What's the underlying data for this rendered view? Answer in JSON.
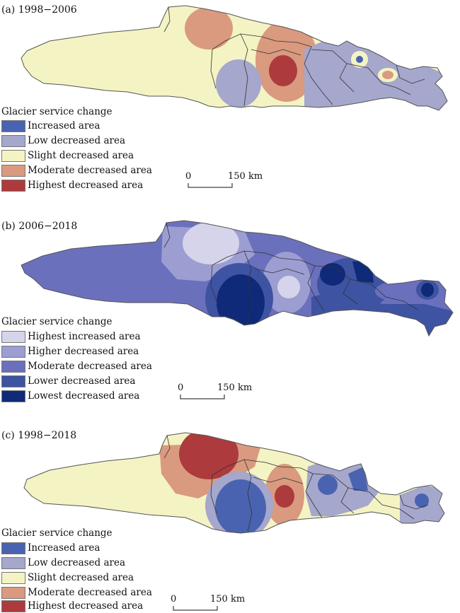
{
  "panels": [
    {
      "title": "(a) 1998−2006",
      "legend_title": "Glacier service change",
      "legend": [
        {
          "label": "Increased area",
          "color": "#4a63b0"
        },
        {
          "label": "Low decreased area",
          "color": "#a5a7cc"
        },
        {
          "label": "Slight decreased area",
          "color": "#f4f3c3"
        },
        {
          "label": "Moderate decreased area",
          "color": "#d99a7f"
        },
        {
          "label": "Highest decreased area",
          "color": "#ad3a3d"
        }
      ],
      "scale": {
        "zero": "0",
        "dist": "150 km"
      }
    },
    {
      "title": "(b) 2006−2018",
      "legend_title": "Glacier service change",
      "legend": [
        {
          "label": "Highest increased area",
          "color": "#d6d4ea"
        },
        {
          "label": "Higher decreased area",
          "color": "#9c9ed2"
        },
        {
          "label": "Moderate decreased area",
          "color": "#6b70bd"
        },
        {
          "label": "Lower decreased area",
          "color": "#3e53a2"
        },
        {
          "label": "Lowest decreased area",
          "color": "#0f2a78"
        }
      ],
      "scale": {
        "zero": "0",
        "dist": "150 km"
      }
    },
    {
      "title": "(c) 1998−2018",
      "legend_title": "Glacier service change",
      "legend": [
        {
          "label": "Increased area",
          "color": "#4a63b0"
        },
        {
          "label": "Low decreased area",
          "color": "#a5a7cc"
        },
        {
          "label": "Slight decreased area",
          "color": "#f4f3c3"
        },
        {
          "label": "Moderate decreased area",
          "color": "#d99a7f"
        },
        {
          "label": "Highest decreased area",
          "color": "#ad3a3d"
        }
      ],
      "scale": {
        "zero": "0",
        "dist": "150 km"
      }
    }
  ]
}
